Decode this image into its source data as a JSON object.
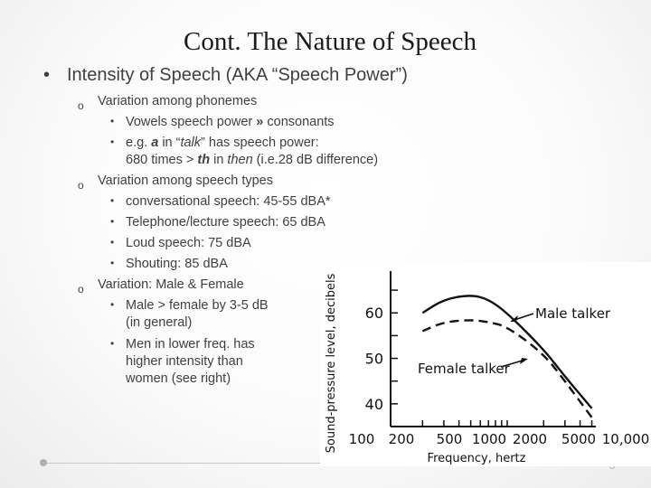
{
  "slide": {
    "title": "Cont. The Nature of Speech",
    "level1": "Intensity of Speech (AKA “Speech Power”)",
    "phonemes": {
      "heading": "Variation among phonemes",
      "b1_pre": "Vowels speech power ",
      "b1_sym": "»",
      "b1_post": " consonants",
      "b2_a": "e.g. ",
      "b2_b": "a",
      "b2_c": " in “",
      "b2_d": "talk",
      "b2_e": "” has speech power:",
      "b2_l2a": "680 times > ",
      "b2_l2b": "th",
      "b2_l2c": " in ",
      "b2_l2d": "then",
      "b2_l2e": " (i.e.28 dB difference)"
    },
    "types": {
      "heading": "Variation among speech types",
      "items": [
        "conversational speech: 45-55 dBA*",
        "Telephone/lecture speech: 65 dBA",
        "Loud speech: 75 dBA",
        "Shouting: 85 dBA"
      ]
    },
    "gender": {
      "heading": "Variation: Male & Female",
      "b1_l1": "Male > female by 3-5 dB",
      "b1_l2": "(in general)",
      "b2_l1": "Men in lower freq. has",
      "b2_l2": "higher intensity than",
      "b2_l3": "women (see right)"
    },
    "page_number": "3"
  },
  "chart_data": {
    "type": "line",
    "ylabel": "Sound-pressure level, decibels",
    "xlabel": "Frequency, hertz",
    "x_ticks": [
      "100",
      "200",
      "500",
      "1000",
      "2000",
      "5000",
      "10,000"
    ],
    "y_ticks": [
      "60",
      "50",
      "40"
    ],
    "x_scale": "log",
    "ylim": [
      35,
      68
    ],
    "series": [
      {
        "name": "Male talker",
        "style": "solid",
        "x": [
          200,
          300,
          500,
          700,
          1000,
          2000,
          3000,
          5000
        ],
        "y": [
          60,
          63,
          64,
          63,
          60,
          52,
          46,
          39
        ]
      },
      {
        "name": "Female talker",
        "style": "dashed",
        "x": [
          200,
          300,
          500,
          700,
          1000,
          2000,
          3000,
          5000
        ],
        "y": [
          56,
          58,
          58.5,
          58,
          57,
          51,
          45,
          37
        ]
      }
    ]
  }
}
